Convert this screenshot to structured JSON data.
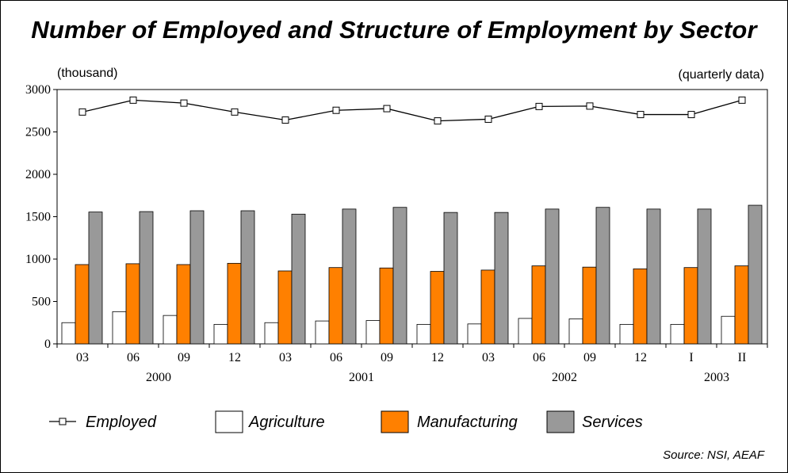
{
  "title": "Number of Employed and Structure of Employment by Sector",
  "unit_left": "(thousand)",
  "unit_right": "(quarterly data)",
  "source": "Source: NSI, AEAF",
  "colors": {
    "agriculture": "#ffffff",
    "manufacturing": "#ff8000",
    "services": "#999999",
    "employed_line": "#000000"
  },
  "chart_data": {
    "type": "bar",
    "categories": [
      "03",
      "06",
      "09",
      "12",
      "03",
      "06",
      "09",
      "12",
      "03",
      "06",
      "09",
      "12",
      "I",
      "II"
    ],
    "years": [
      {
        "label": "2000",
        "span": [
          0,
          3
        ]
      },
      {
        "label": "2001",
        "span": [
          4,
          7
        ]
      },
      {
        "label": "2002",
        "span": [
          8,
          11
        ]
      },
      {
        "label": "2003",
        "span": [
          12,
          13
        ]
      }
    ],
    "ylim": [
      0,
      3000
    ],
    "yticks": [
      0,
      500,
      1000,
      1500,
      2000,
      2500,
      3000
    ],
    "series": [
      {
        "name": "Agriculture",
        "type": "bar",
        "values": [
          250,
          380,
          335,
          230,
          250,
          270,
          275,
          230,
          235,
          300,
          295,
          230,
          230,
          325
        ]
      },
      {
        "name": "Manufacturing",
        "type": "bar",
        "values": [
          935,
          945,
          935,
          950,
          860,
          900,
          895,
          855,
          870,
          920,
          905,
          885,
          900,
          920
        ]
      },
      {
        "name": "Services",
        "type": "bar",
        "values": [
          1555,
          1560,
          1570,
          1570,
          1530,
          1590,
          1610,
          1550,
          1550,
          1590,
          1610,
          1590,
          1590,
          1635
        ]
      },
      {
        "name": "Employed",
        "type": "line",
        "values": [
          2735,
          2875,
          2840,
          2735,
          2640,
          2755,
          2775,
          2630,
          2650,
          2800,
          2805,
          2705,
          2705,
          2875
        ]
      }
    ],
    "grid": false,
    "legend_position": "bottom"
  }
}
